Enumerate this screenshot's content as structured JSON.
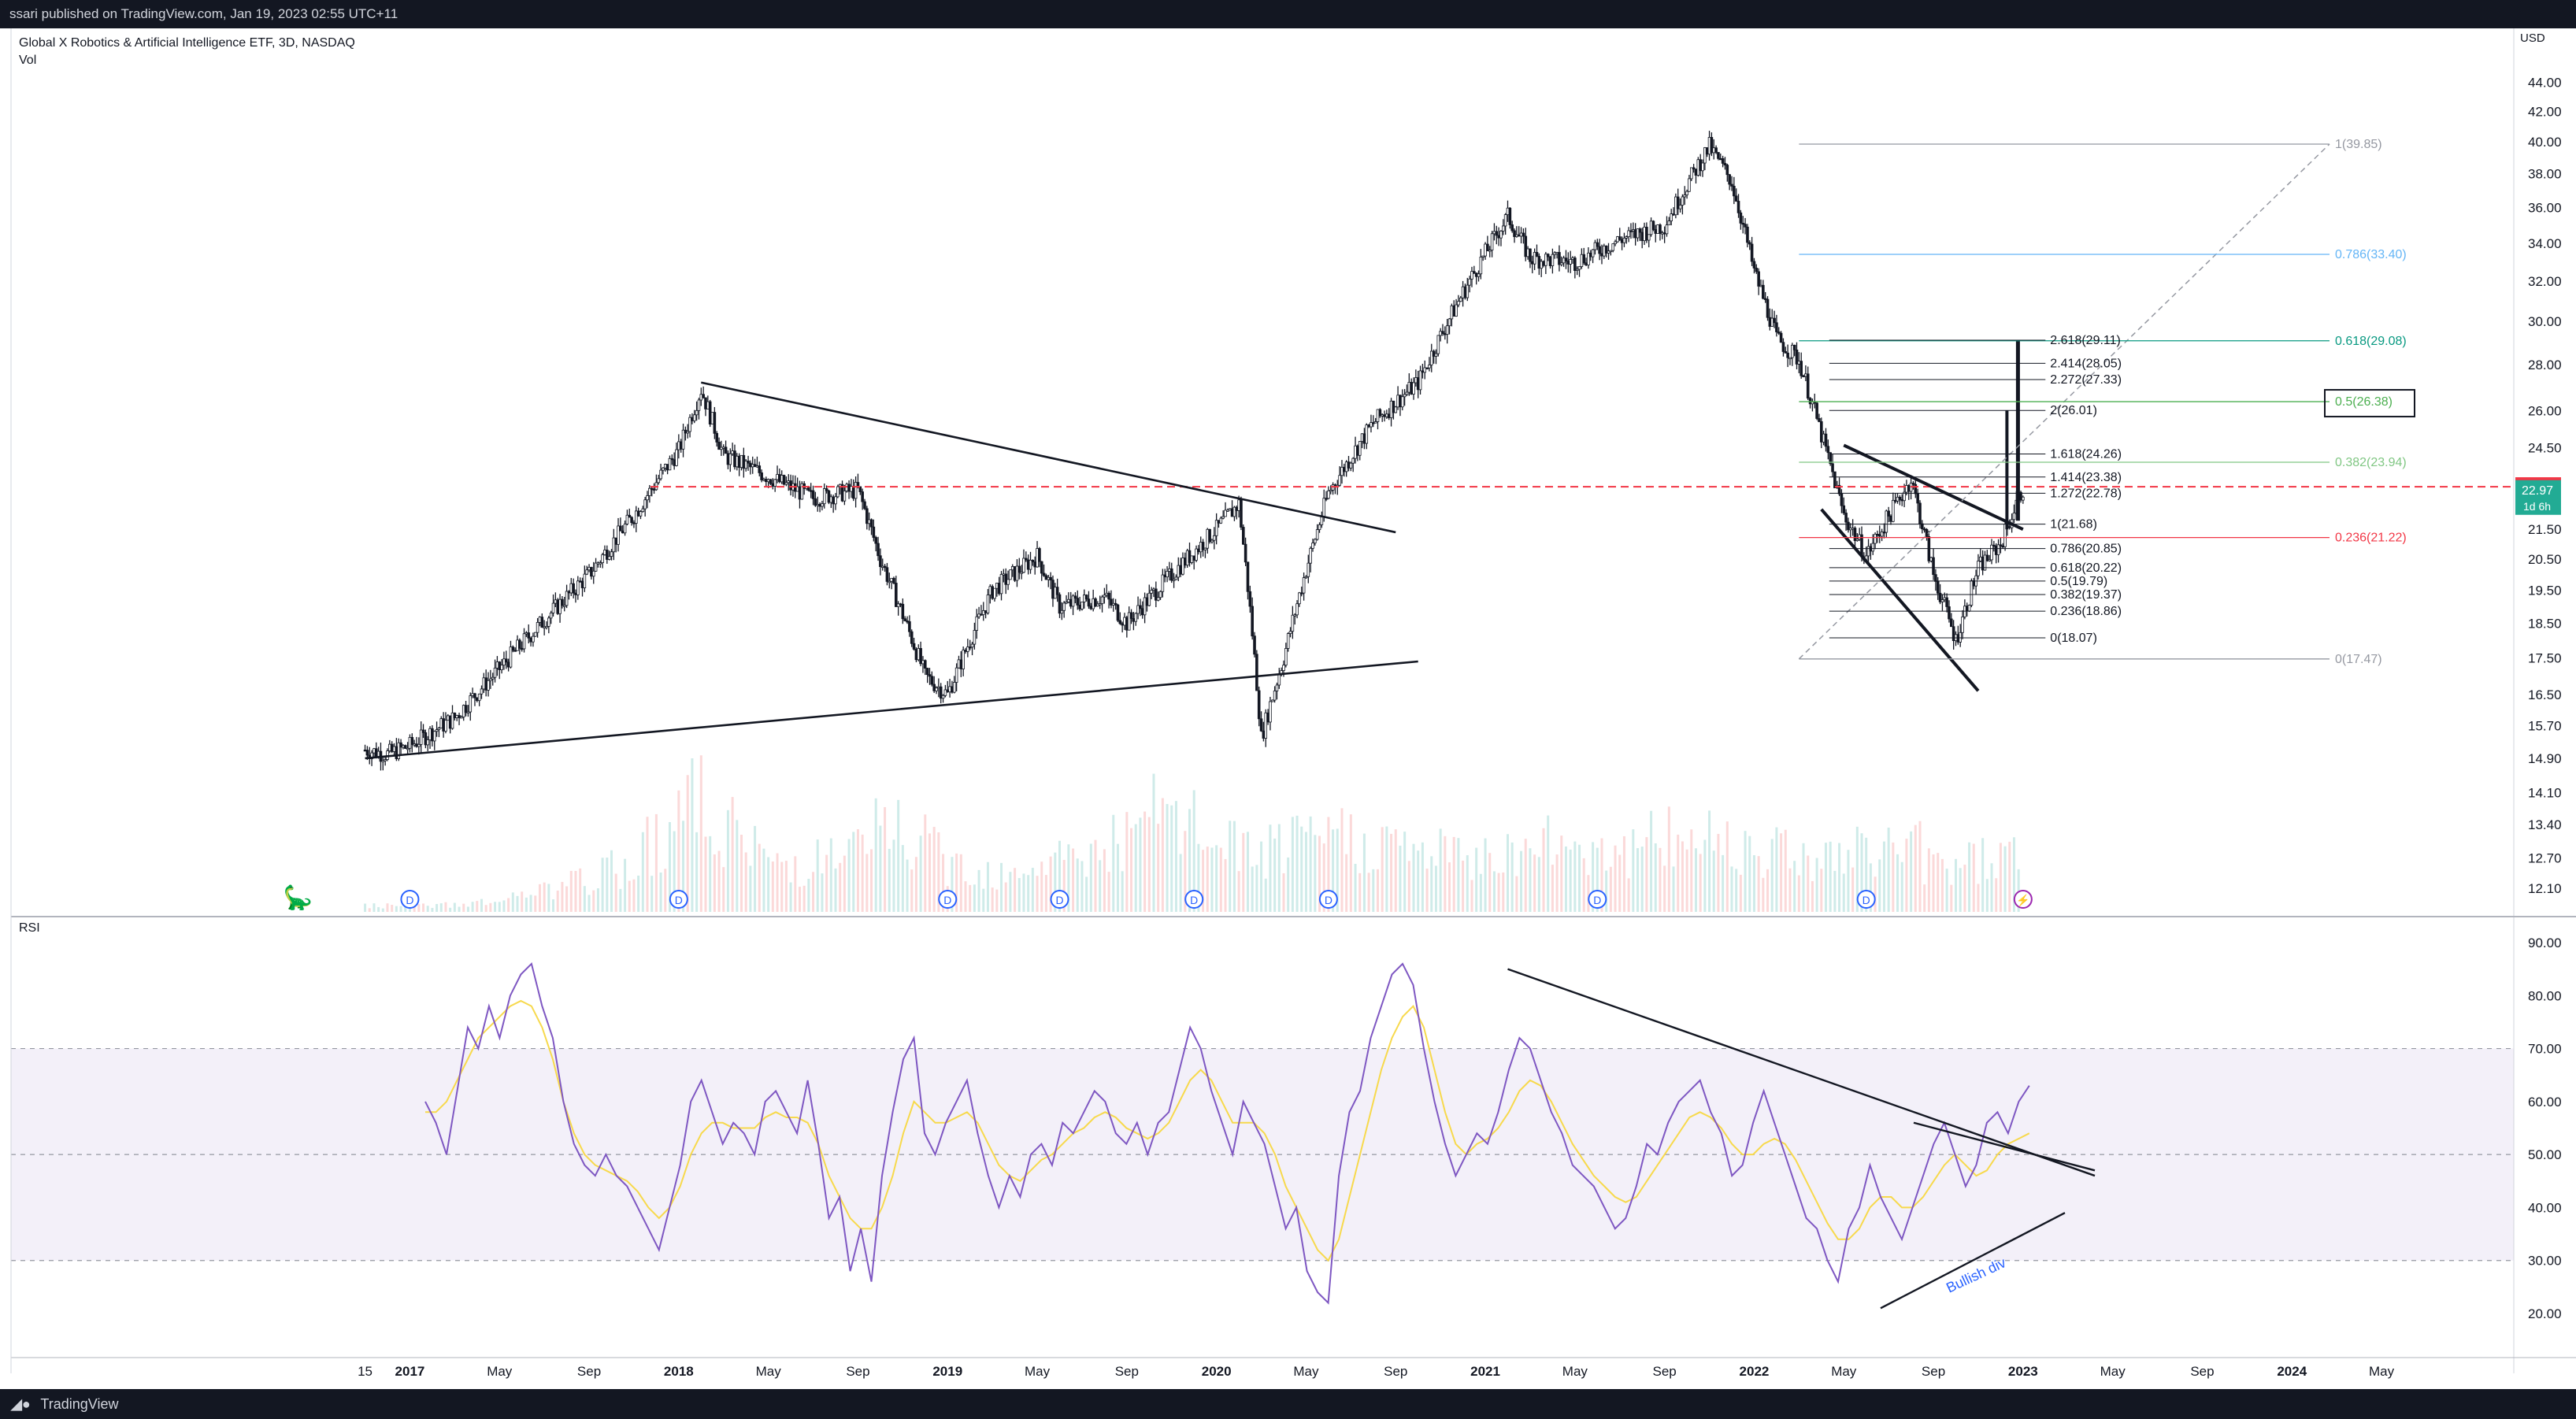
{
  "header": {
    "published_text": "ssari published on TradingView.com, Jan 19, 2023 02:55 UTC+11"
  },
  "footer": {
    "brand": "TradingView"
  },
  "chart_data": {
    "type": "candlestick",
    "title": "Global X Robotics & Artificial Intelligence ETF, 3D, NASDAQ",
    "subtitle": "Vol",
    "currency": "USD",
    "price_axis": {
      "ticks": [
        "44.00",
        "42.00",
        "40.00",
        "38.00",
        "36.00",
        "34.00",
        "32.00",
        "30.00",
        "28.00",
        "26.00",
        "24.50",
        "23.00",
        "21.50",
        "20.50",
        "19.50",
        "18.50",
        "17.50",
        "16.50",
        "15.70",
        "14.90",
        "14.10",
        "13.40",
        "12.70",
        "12.10"
      ],
      "current_price": "22.97",
      "current_price_countdown": "1d 6h",
      "reference_price": "23.02",
      "ylim": [
        12.1,
        44.0
      ],
      "scale": "log"
    },
    "time_axis": {
      "ticks": [
        "15",
        "2017",
        "May",
        "Sep",
        "2018",
        "May",
        "Sep",
        "2019",
        "May",
        "Sep",
        "2020",
        "May",
        "Sep",
        "2021",
        "May",
        "Sep",
        "2022",
        "May",
        "Sep",
        "2023",
        "May",
        "Sep",
        "2024",
        "May"
      ]
    },
    "price_path": [
      [
        "2016-11",
        15.1
      ],
      [
        "2016-12",
        15.0
      ],
      [
        "2017-01",
        15.2
      ],
      [
        "2017-03",
        15.9
      ],
      [
        "2017-05",
        17.2
      ],
      [
        "2017-07",
        18.6
      ],
      [
        "2017-09",
        20.0
      ],
      [
        "2017-11",
        22.0
      ],
      [
        "2018-01",
        24.4
      ],
      [
        "2018-02",
        26.9
      ],
      [
        "2018-03",
        24.2
      ],
      [
        "2018-05",
        23.4
      ],
      [
        "2018-07",
        22.6
      ],
      [
        "2018-09",
        22.9
      ],
      [
        "2018-10",
        20.5
      ],
      [
        "2018-12",
        17.0
      ],
      [
        "2019-01",
        16.5
      ],
      [
        "2019-03",
        19.5
      ],
      [
        "2019-05",
        20.6
      ],
      [
        "2019-06",
        19.0
      ],
      [
        "2019-08",
        19.3
      ],
      [
        "2019-09",
        18.5
      ],
      [
        "2019-11",
        20.0
      ],
      [
        "2020-01",
        21.5
      ],
      [
        "2020-02",
        22.4
      ],
      [
        "2020-03",
        15.4
      ],
      [
        "2020-04",
        17.5
      ],
      [
        "2020-06",
        22.8
      ],
      [
        "2020-08",
        25.5
      ],
      [
        "2020-10",
        27.2
      ],
      [
        "2020-12",
        31.4
      ],
      [
        "2021-02",
        35.5
      ],
      [
        "2021-03",
        33.2
      ],
      [
        "2021-05",
        33.0
      ],
      [
        "2021-07",
        34.2
      ],
      [
        "2021-09",
        35.0
      ],
      [
        "2021-11",
        39.7
      ],
      [
        "2021-12",
        37.5
      ],
      [
        "2022-01",
        32.5
      ],
      [
        "2022-02",
        29.2
      ],
      [
        "2022-03",
        28.2
      ],
      [
        "2022-04",
        25.0
      ],
      [
        "2022-05",
        22.0
      ],
      [
        "2022-06",
        20.6
      ],
      [
        "2022-08",
        23.3
      ],
      [
        "2022-09",
        20.0
      ],
      [
        "2022-10",
        18.0
      ],
      [
        "2022-11",
        20.2
      ],
      [
        "2022-12",
        21.0
      ],
      [
        "2023-01",
        22.97
      ]
    ],
    "volume_relative": [
      0.05,
      0.05,
      0.06,
      0.08,
      0.12,
      0.18,
      0.25,
      0.35,
      0.6,
      0.9,
      0.75,
      0.5,
      0.4,
      0.45,
      0.5,
      0.7,
      0.55,
      0.4,
      0.35,
      0.4,
      0.45,
      0.5,
      0.6,
      0.8,
      0.7,
      0.55,
      0.5,
      0.55,
      0.65,
      0.6,
      0.55,
      0.5,
      0.45,
      0.5,
      0.55,
      0.6,
      0.55,
      0.5,
      0.6,
      0.65,
      0.6,
      0.55,
      0.5,
      0.45,
      0.5,
      0.55,
      0.4,
      0.45,
      0.5,
      0.35
    ],
    "dividend_markers": [
      "D",
      "D",
      "D",
      "D",
      "D",
      "D",
      "D",
      "D"
    ],
    "dividend_months": [
      "2017-01",
      "2018-01",
      "2019-01",
      "2019-06",
      "2019-12",
      "2020-06",
      "2021-06",
      "2022-06"
    ],
    "fib_extension_left": [
      {
        "label": "2.618(29.11)",
        "price": 29.11
      },
      {
        "label": "2.414(28.05)",
        "price": 28.05
      },
      {
        "label": "2.272(27.33)",
        "price": 27.33
      },
      {
        "label": "2(26.01)",
        "price": 26.01
      },
      {
        "label": "1.618(24.26)",
        "price": 24.26
      },
      {
        "label": "1.414(23.38)",
        "price": 23.38
      },
      {
        "label": "1.272(22.78)",
        "price": 22.78
      },
      {
        "label": "1(21.68)",
        "price": 21.68
      },
      {
        "label": "0.786(20.85)",
        "price": 20.85
      },
      {
        "label": "0.618(20.22)",
        "price": 20.22
      },
      {
        "label": "0.5(19.79)",
        "price": 19.79
      },
      {
        "label": "0.382(19.37)",
        "price": 19.37
      },
      {
        "label": "0.236(18.86)",
        "price": 18.86
      },
      {
        "label": "0(18.07)",
        "price": 18.07
      }
    ],
    "fib_retracement_right": [
      {
        "label": "1(39.85)",
        "price": 39.85,
        "color": "#9598a1"
      },
      {
        "label": "0.786(33.40)",
        "price": 33.4,
        "color": "#64b5f6"
      },
      {
        "label": "0.618(29.08)",
        "price": 29.08,
        "color": "#089981"
      },
      {
        "label": "0.5(26.38)",
        "price": 26.38,
        "color": "#4caf50"
      },
      {
        "label": "0.382(23.94)",
        "price": 23.94,
        "color": "#81c784"
      },
      {
        "label": "0.236(21.22)",
        "price": 21.22,
        "color": "#f23645"
      },
      {
        "label": "0(17.47)",
        "price": 17.47,
        "color": "#9598a1"
      }
    ],
    "rsi": {
      "label": "RSI",
      "axis_ticks": [
        "90.00",
        "80.00",
        "70.00",
        "60.00",
        "50.00",
        "40.00",
        "30.00",
        "20.00"
      ],
      "upper_band": 70,
      "lower_band": 30,
      "annotation": "Bullish div",
      "values": [
        60,
        56,
        50,
        62,
        74,
        70,
        78,
        72,
        80,
        84,
        86,
        78,
        72,
        60,
        52,
        48,
        46,
        50,
        46,
        44,
        40,
        36,
        32,
        40,
        48,
        60,
        64,
        58,
        52,
        56,
        54,
        50,
        60,
        62,
        58,
        54,
        64,
        52,
        38,
        42,
        28,
        36,
        26,
        46,
        58,
        68,
        72,
        54,
        50,
        56,
        60,
        64,
        54,
        46,
        40,
        46,
        42,
        50,
        52,
        48,
        56,
        54,
        58,
        62,
        60,
        54,
        52,
        56,
        50,
        56,
        58,
        66,
        74,
        70,
        62,
        56,
        50,
        60,
        56,
        52,
        44,
        36,
        40,
        28,
        24,
        22,
        46,
        58,
        62,
        72,
        78,
        84,
        86,
        82,
        70,
        60,
        52,
        46,
        50,
        54,
        52,
        58,
        66,
        72,
        70,
        64,
        58,
        54,
        48,
        46,
        44,
        40,
        36,
        38,
        44,
        52,
        50,
        56,
        60,
        62,
        64,
        58,
        54,
        46,
        48,
        56,
        62,
        56,
        50,
        44,
        38,
        36,
        30,
        26,
        36,
        40,
        48,
        42,
        38,
        34,
        40,
        46,
        52,
        56,
        50,
        44,
        48,
        56,
        58,
        54,
        60,
        63
      ],
      "ma_values": [
        58,
        58,
        60,
        64,
        68,
        72,
        74,
        76,
        78,
        79,
        78,
        74,
        68,
        60,
        54,
        50,
        48,
        47,
        46,
        45,
        43,
        40,
        38,
        40,
        44,
        50,
        54,
        56,
        56,
        55,
        55,
        55,
        57,
        58,
        57,
        57,
        56,
        52,
        46,
        42,
        38,
        36,
        36,
        40,
        46,
        54,
        60,
        58,
        56,
        56,
        57,
        58,
        56,
        52,
        48,
        46,
        45,
        47,
        49,
        50,
        52,
        54,
        55,
        57,
        58,
        57,
        55,
        54,
        53,
        54,
        56,
        60,
        64,
        66,
        64,
        60,
        56,
        56,
        56,
        54,
        50,
        44,
        40,
        36,
        32,
        30,
        34,
        42,
        50,
        58,
        66,
        72,
        76,
        78,
        74,
        66,
        58,
        52,
        50,
        52,
        53,
        55,
        58,
        62,
        64,
        63,
        60,
        56,
        52,
        49,
        46,
        44,
        42,
        41,
        42,
        45,
        48,
        51,
        54,
        57,
        58,
        57,
        55,
        52,
        50,
        50,
        52,
        53,
        52,
        49,
        45,
        41,
        37,
        34,
        34,
        36,
        40,
        42,
        42,
        40,
        40,
        42,
        45,
        48,
        50,
        48,
        46,
        47,
        50,
        52,
        53,
        54
      ]
    }
  }
}
